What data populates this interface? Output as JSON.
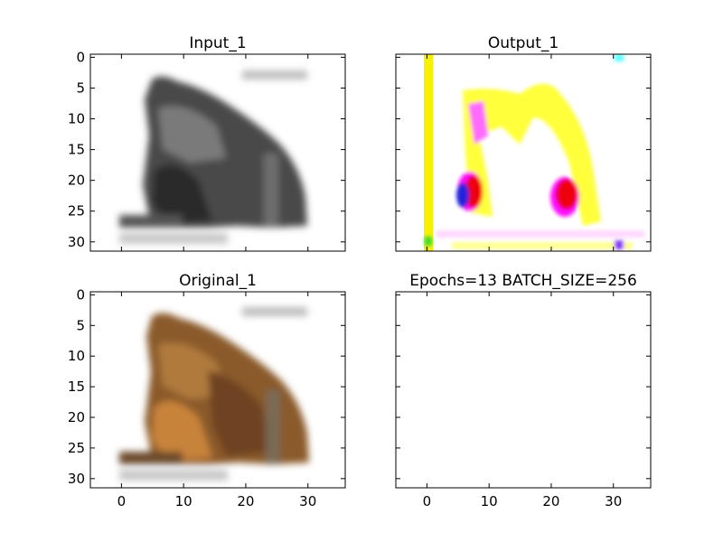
{
  "chart_data": [
    {
      "type": "image",
      "title": "Input_1",
      "xlim": [
        -5,
        36
      ],
      "ylim": [
        31.5,
        -0.5
      ],
      "xticks": [],
      "yticks": [
        0,
        5,
        10,
        15,
        20,
        25,
        30
      ],
      "image_extent": [
        -0.5,
        31.5
      ],
      "content": "grayscale"
    },
    {
      "type": "image",
      "title": "Output_1",
      "xlim": [
        -5,
        36
      ],
      "ylim": [
        31.5,
        -0.5
      ],
      "xticks": [],
      "yticks": [
        0,
        5,
        10,
        15,
        20,
        25,
        30
      ],
      "image_extent": [
        -0.5,
        31.5
      ],
      "content": "color"
    },
    {
      "type": "image",
      "title": "Original_1",
      "xlim": [
        -5,
        36
      ],
      "ylim": [
        31.5,
        -0.5
      ],
      "xticks": [
        0,
        10,
        20,
        30
      ],
      "yticks": [
        0,
        5,
        10,
        15,
        20,
        25,
        30
      ],
      "image_extent": [
        -0.5,
        31.5
      ],
      "content": "color"
    },
    {
      "type": "image",
      "title": "Epochs=13 BATCH_SIZE=256",
      "xlim": [
        -5,
        36
      ],
      "ylim": [
        31.5,
        -0.5
      ],
      "xticks": [
        0,
        10,
        20,
        30
      ],
      "yticks": [
        0,
        5,
        10,
        15,
        20,
        25,
        30
      ],
      "image_extent": [
        -0.5,
        31.5
      ],
      "content": "empty"
    }
  ]
}
